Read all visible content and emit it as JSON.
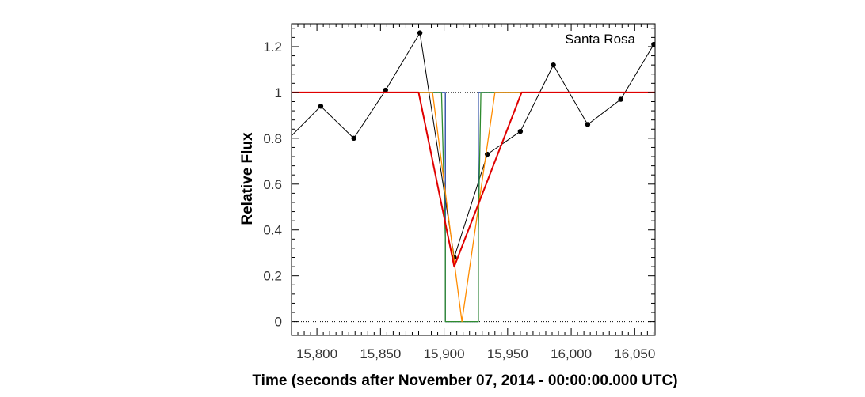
{
  "chart_data": {
    "type": "line",
    "title": "",
    "annotation": "Santa Rosa",
    "xlabel": "Time (seconds after November 07, 2014 - 00:00:00.000 UTC)",
    "ylabel": "Relative Flux",
    "xlim": [
      15780,
      16066
    ],
    "ylim": [
      -0.06,
      1.3
    ],
    "xticks": [
      15800,
      15850,
      15900,
      15950,
      16000,
      16050
    ],
    "xtick_labels": [
      "15,800",
      "15,850",
      "15,900",
      "15,950",
      "16,000",
      "16,050"
    ],
    "yticks": [
      0,
      0.2,
      0.4,
      0.6,
      0.8,
      1,
      1.2
    ],
    "ytick_labels": [
      "0",
      "0.2",
      "0.4",
      "0.6",
      "0.8",
      "1",
      "1.2"
    ],
    "reference_lines": [
      0,
      1
    ],
    "grid": false,
    "series": [
      {
        "role": "observed",
        "color": "#000000",
        "markers": true,
        "x": [
          15778,
          15803,
          15829,
          15854,
          15881,
          15908,
          15934,
          15960,
          15986,
          16013,
          16039,
          16065
        ],
        "y": [
          0.8,
          0.94,
          0.8,
          1.01,
          1.26,
          0.28,
          0.73,
          0.83,
          1.12,
          0.86,
          0.97,
          1.21
        ]
      },
      {
        "role": "square-well-model",
        "color": "#1f3f9f",
        "markers": false,
        "x": [
          15778,
          15901,
          15901,
          15927,
          15927,
          16066
        ],
        "y": [
          1,
          1,
          0,
          0,
          1,
          1
        ]
      },
      {
        "role": "diffraction-model",
        "color": "#2e8b2e",
        "markers": false,
        "x": [
          15778,
          15898,
          15901,
          15901,
          15903,
          15924,
          15927,
          15927,
          15929,
          15932,
          16066
        ],
        "y": [
          1,
          1,
          0.36,
          0,
          0,
          0,
          0,
          0.4,
          1,
          1,
          1
        ]
      },
      {
        "role": "finite-integration-model",
        "color": "#ff8c00",
        "markers": false,
        "x": [
          15778,
          15891,
          15914,
          15940,
          16066
        ],
        "y": [
          1,
          1,
          0,
          1,
          1
        ]
      },
      {
        "role": "fitted-model",
        "color": "#e00000",
        "markers": false,
        "x": [
          15778,
          15880,
          15908,
          15961,
          16066
        ],
        "y": [
          1,
          1,
          0.24,
          1,
          1
        ]
      }
    ]
  }
}
